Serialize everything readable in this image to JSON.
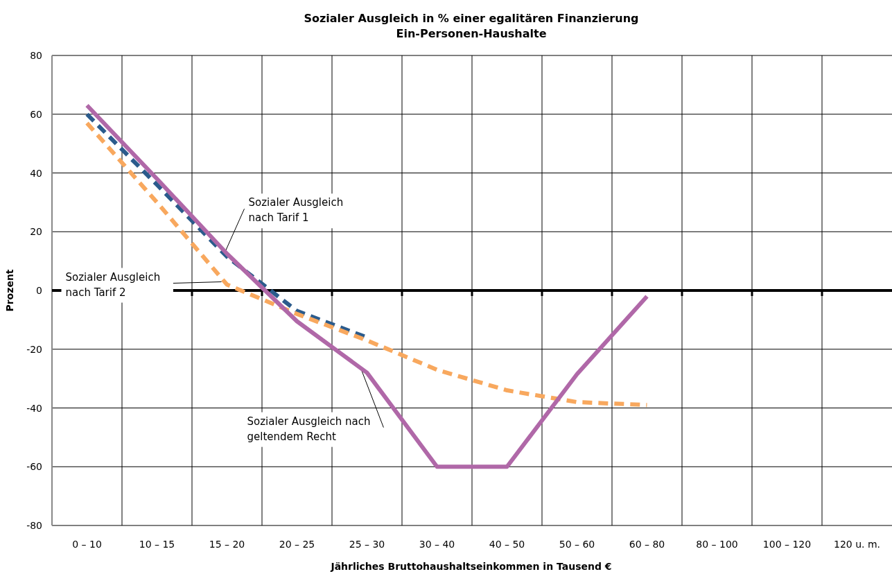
{
  "chart_data": {
    "type": "line",
    "title": "Sozialer Ausgleich in % einer egalitären Finanzierung\nEin-Personen-Haushalte",
    "xlabel": "Jährliches Bruttohaushaltseinkommen in Tausend €",
    "ylabel": "Prozent",
    "categories": [
      "0 – 10",
      "10 – 15",
      "15 – 20",
      "20 – 25",
      "25 – 30",
      "30 – 40",
      "40 – 50",
      "50 – 60",
      "60 – 80",
      "80 – 100",
      "100 – 120",
      "120 u. m."
    ],
    "series": [
      {
        "color": "#2b5b8c",
        "line_style": "dashed",
        "values": [
          60,
          36,
          11.5,
          -7,
          -16,
          null,
          null,
          null,
          null,
          null,
          null,
          null
        ]
      },
      {
        "color": "#f8a85e",
        "line_style": "dashed",
        "values": [
          57,
          30,
          2,
          -8,
          -17,
          -27,
          -34,
          -38,
          -39,
          null,
          null,
          null
        ]
      },
      {
        "color": "#b068a8",
        "line_style": "solid",
        "values": [
          63,
          38,
          12.5,
          -10.5,
          -28,
          -60,
          -60,
          -28.5,
          -2,
          null,
          null,
          null
        ]
      }
    ],
    "annotations": [
      {
        "text": "Sozialer Ausgleich\nnach Tarif 1",
        "x": "15 – 20",
        "y": 11.5
      },
      {
        "text": "Sozialer Ausgleich\nnach Tarif 2",
        "x": "15 – 20",
        "y": 2
      },
      {
        "text": "Sozialer Ausgleich nach\ngeltendem Recht",
        "x": "25 – 30",
        "y": -28
      }
    ],
    "ylim": [
      -80,
      80
    ],
    "yticks": [
      -80,
      -60,
      -40,
      -20,
      0,
      20,
      40,
      60,
      80
    ],
    "grid": true
  }
}
